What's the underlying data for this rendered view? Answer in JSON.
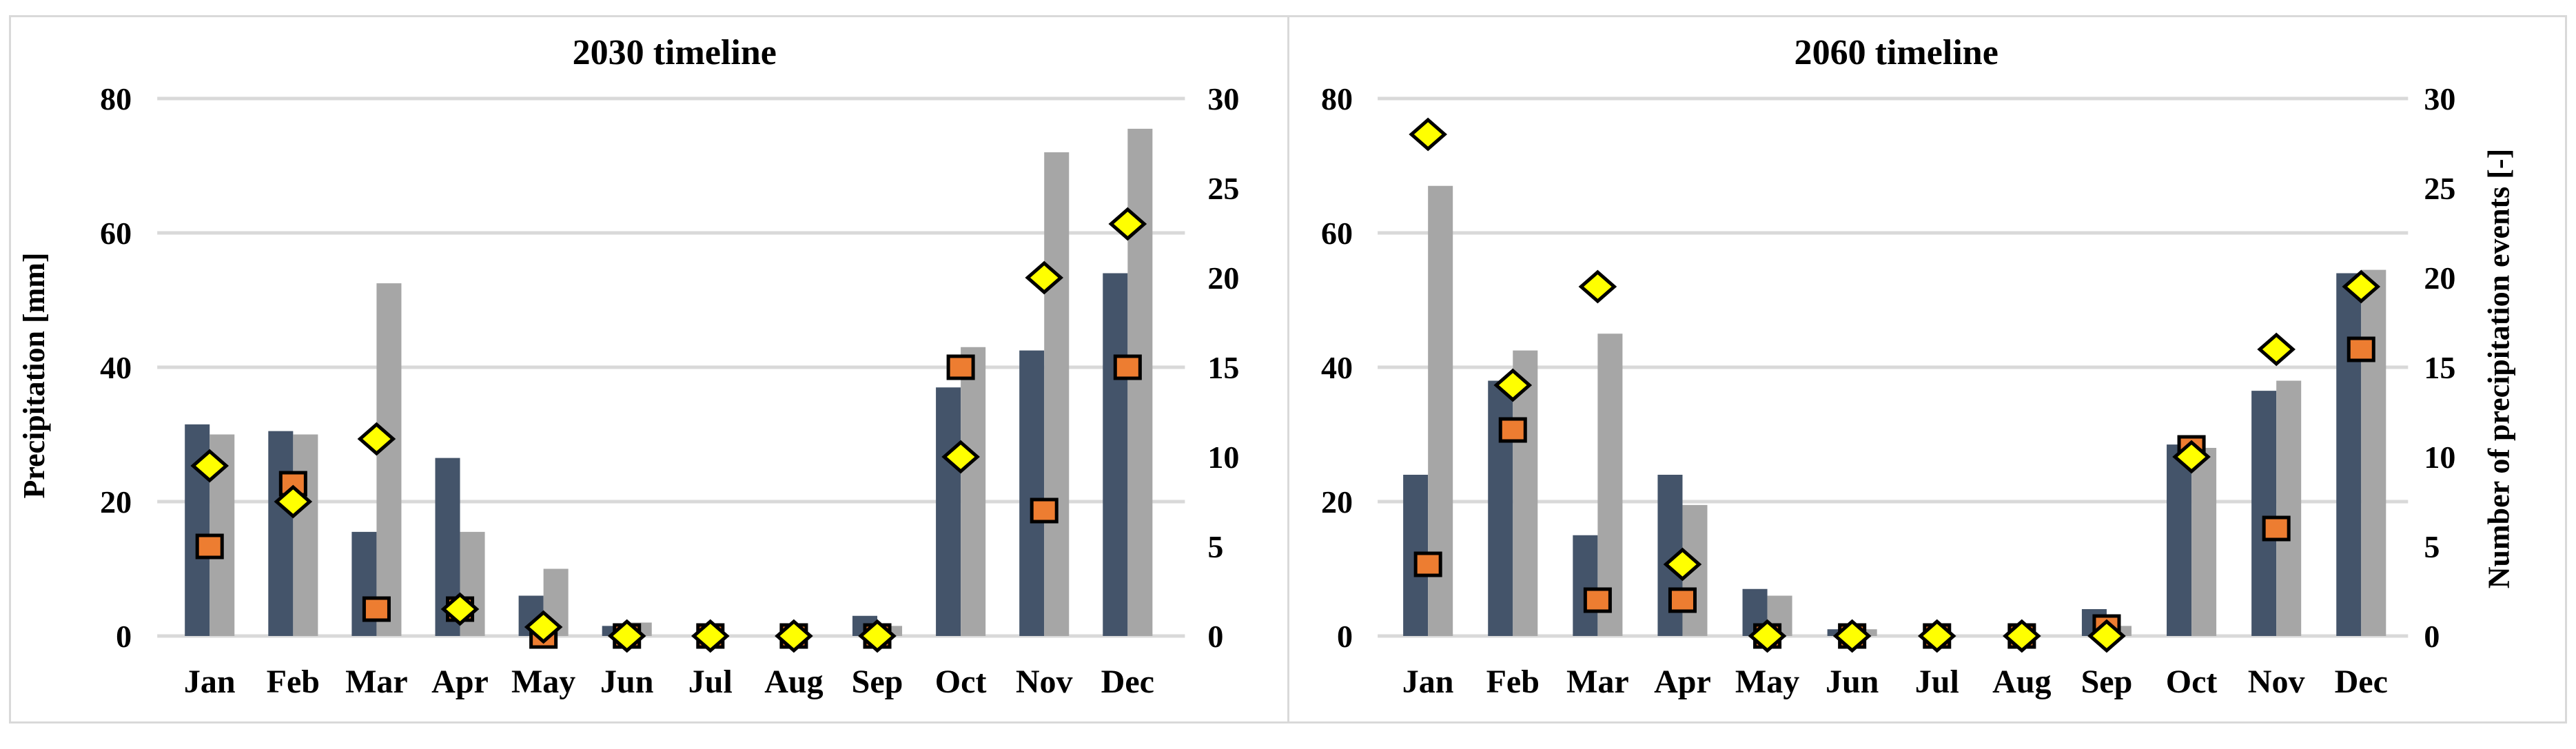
{
  "page": {
    "background": "#FFFFFF",
    "border_color": "#D9D9D9"
  },
  "colors": {
    "bar_dark": "#44546A",
    "bar_gray": "#A6A6A6",
    "marker_diamond_fill": "#FFFF00",
    "marker_square_fill": "#ED7D31",
    "marker_stroke": "#000000",
    "gridline": "#D9D9D9",
    "text": "#000000"
  },
  "left_axis": {
    "title": "Precipitation [mm]",
    "ticks": [
      0,
      20,
      40,
      60,
      80
    ],
    "range": [
      0,
      80
    ]
  },
  "right_axis": {
    "title": "Number of precipitation events [-]",
    "ticks": [
      0,
      5,
      10,
      15,
      20,
      25,
      30
    ],
    "range": [
      0,
      30
    ]
  },
  "chart_data": [
    {
      "type": "bar",
      "title": "2030 timeline",
      "categories": [
        "Jan",
        "Feb",
        "Mar",
        "Apr",
        "May",
        "Jun",
        "Jul",
        "Aug",
        "Sep",
        "Oct",
        "Nov",
        "Dec"
      ],
      "xlabel": "",
      "ylabel": "Precipitation [mm]",
      "y2label": "Number of precipitation events [-]",
      "ylim": [
        0,
        80
      ],
      "y2lim": [
        0,
        30
      ],
      "grid": true,
      "legend": "none",
      "series": [
        {
          "name": "precipitation-bar-dark",
          "kind": "bar",
          "axis": "left",
          "values": [
            31.5,
            30.5,
            15.5,
            26.5,
            6,
            1.5,
            0,
            0,
            3,
            37,
            42.5,
            54
          ]
        },
        {
          "name": "precipitation-bar-gray",
          "kind": "bar",
          "axis": "left",
          "values": [
            30,
            30,
            52.5,
            15.5,
            10,
            2,
            0,
            0,
            1.5,
            43,
            72,
            75.5
          ]
        },
        {
          "name": "events-square",
          "kind": "scatter-square",
          "axis": "right",
          "values": [
            5,
            8.5,
            1.5,
            1.5,
            0,
            0,
            0,
            0,
            0,
            15,
            7,
            15
          ]
        },
        {
          "name": "events-diamond",
          "kind": "scatter-diamond",
          "axis": "right",
          "values": [
            9.5,
            7.5,
            11,
            1.5,
            0.5,
            0,
            0,
            0,
            0,
            10,
            20,
            23
          ]
        }
      ]
    },
    {
      "type": "bar",
      "title": "2060 timeline",
      "categories": [
        "Jan",
        "Feb",
        "Mar",
        "Apr",
        "May",
        "Jun",
        "Jul",
        "Aug",
        "Sep",
        "Oct",
        "Nov",
        "Dec"
      ],
      "xlabel": "",
      "ylabel": "Precipitation [mm]",
      "y2label": "Number of precipitation events [-]",
      "ylim": [
        0,
        80
      ],
      "y2lim": [
        0,
        30
      ],
      "grid": true,
      "legend": "none",
      "series": [
        {
          "name": "precipitation-bar-dark",
          "kind": "bar",
          "axis": "left",
          "values": [
            24,
            38,
            15,
            24,
            7,
            1,
            0,
            0,
            4,
            28.5,
            36.5,
            54
          ]
        },
        {
          "name": "precipitation-bar-gray",
          "kind": "bar",
          "axis": "left",
          "values": [
            67,
            42.5,
            45,
            19.5,
            6,
            1,
            0,
            0,
            1.5,
            28,
            38,
            54.5
          ]
        },
        {
          "name": "events-square",
          "kind": "scatter-square",
          "axis": "right",
          "values": [
            4,
            11.5,
            2,
            2,
            0,
            0,
            0,
            0,
            0.5,
            10.5,
            6,
            16
          ]
        },
        {
          "name": "events-diamond",
          "kind": "scatter-diamond",
          "axis": "right",
          "values": [
            28,
            14,
            19.5,
            4,
            0,
            0,
            0,
            0,
            0,
            10,
            16,
            19.5
          ]
        }
      ]
    }
  ]
}
